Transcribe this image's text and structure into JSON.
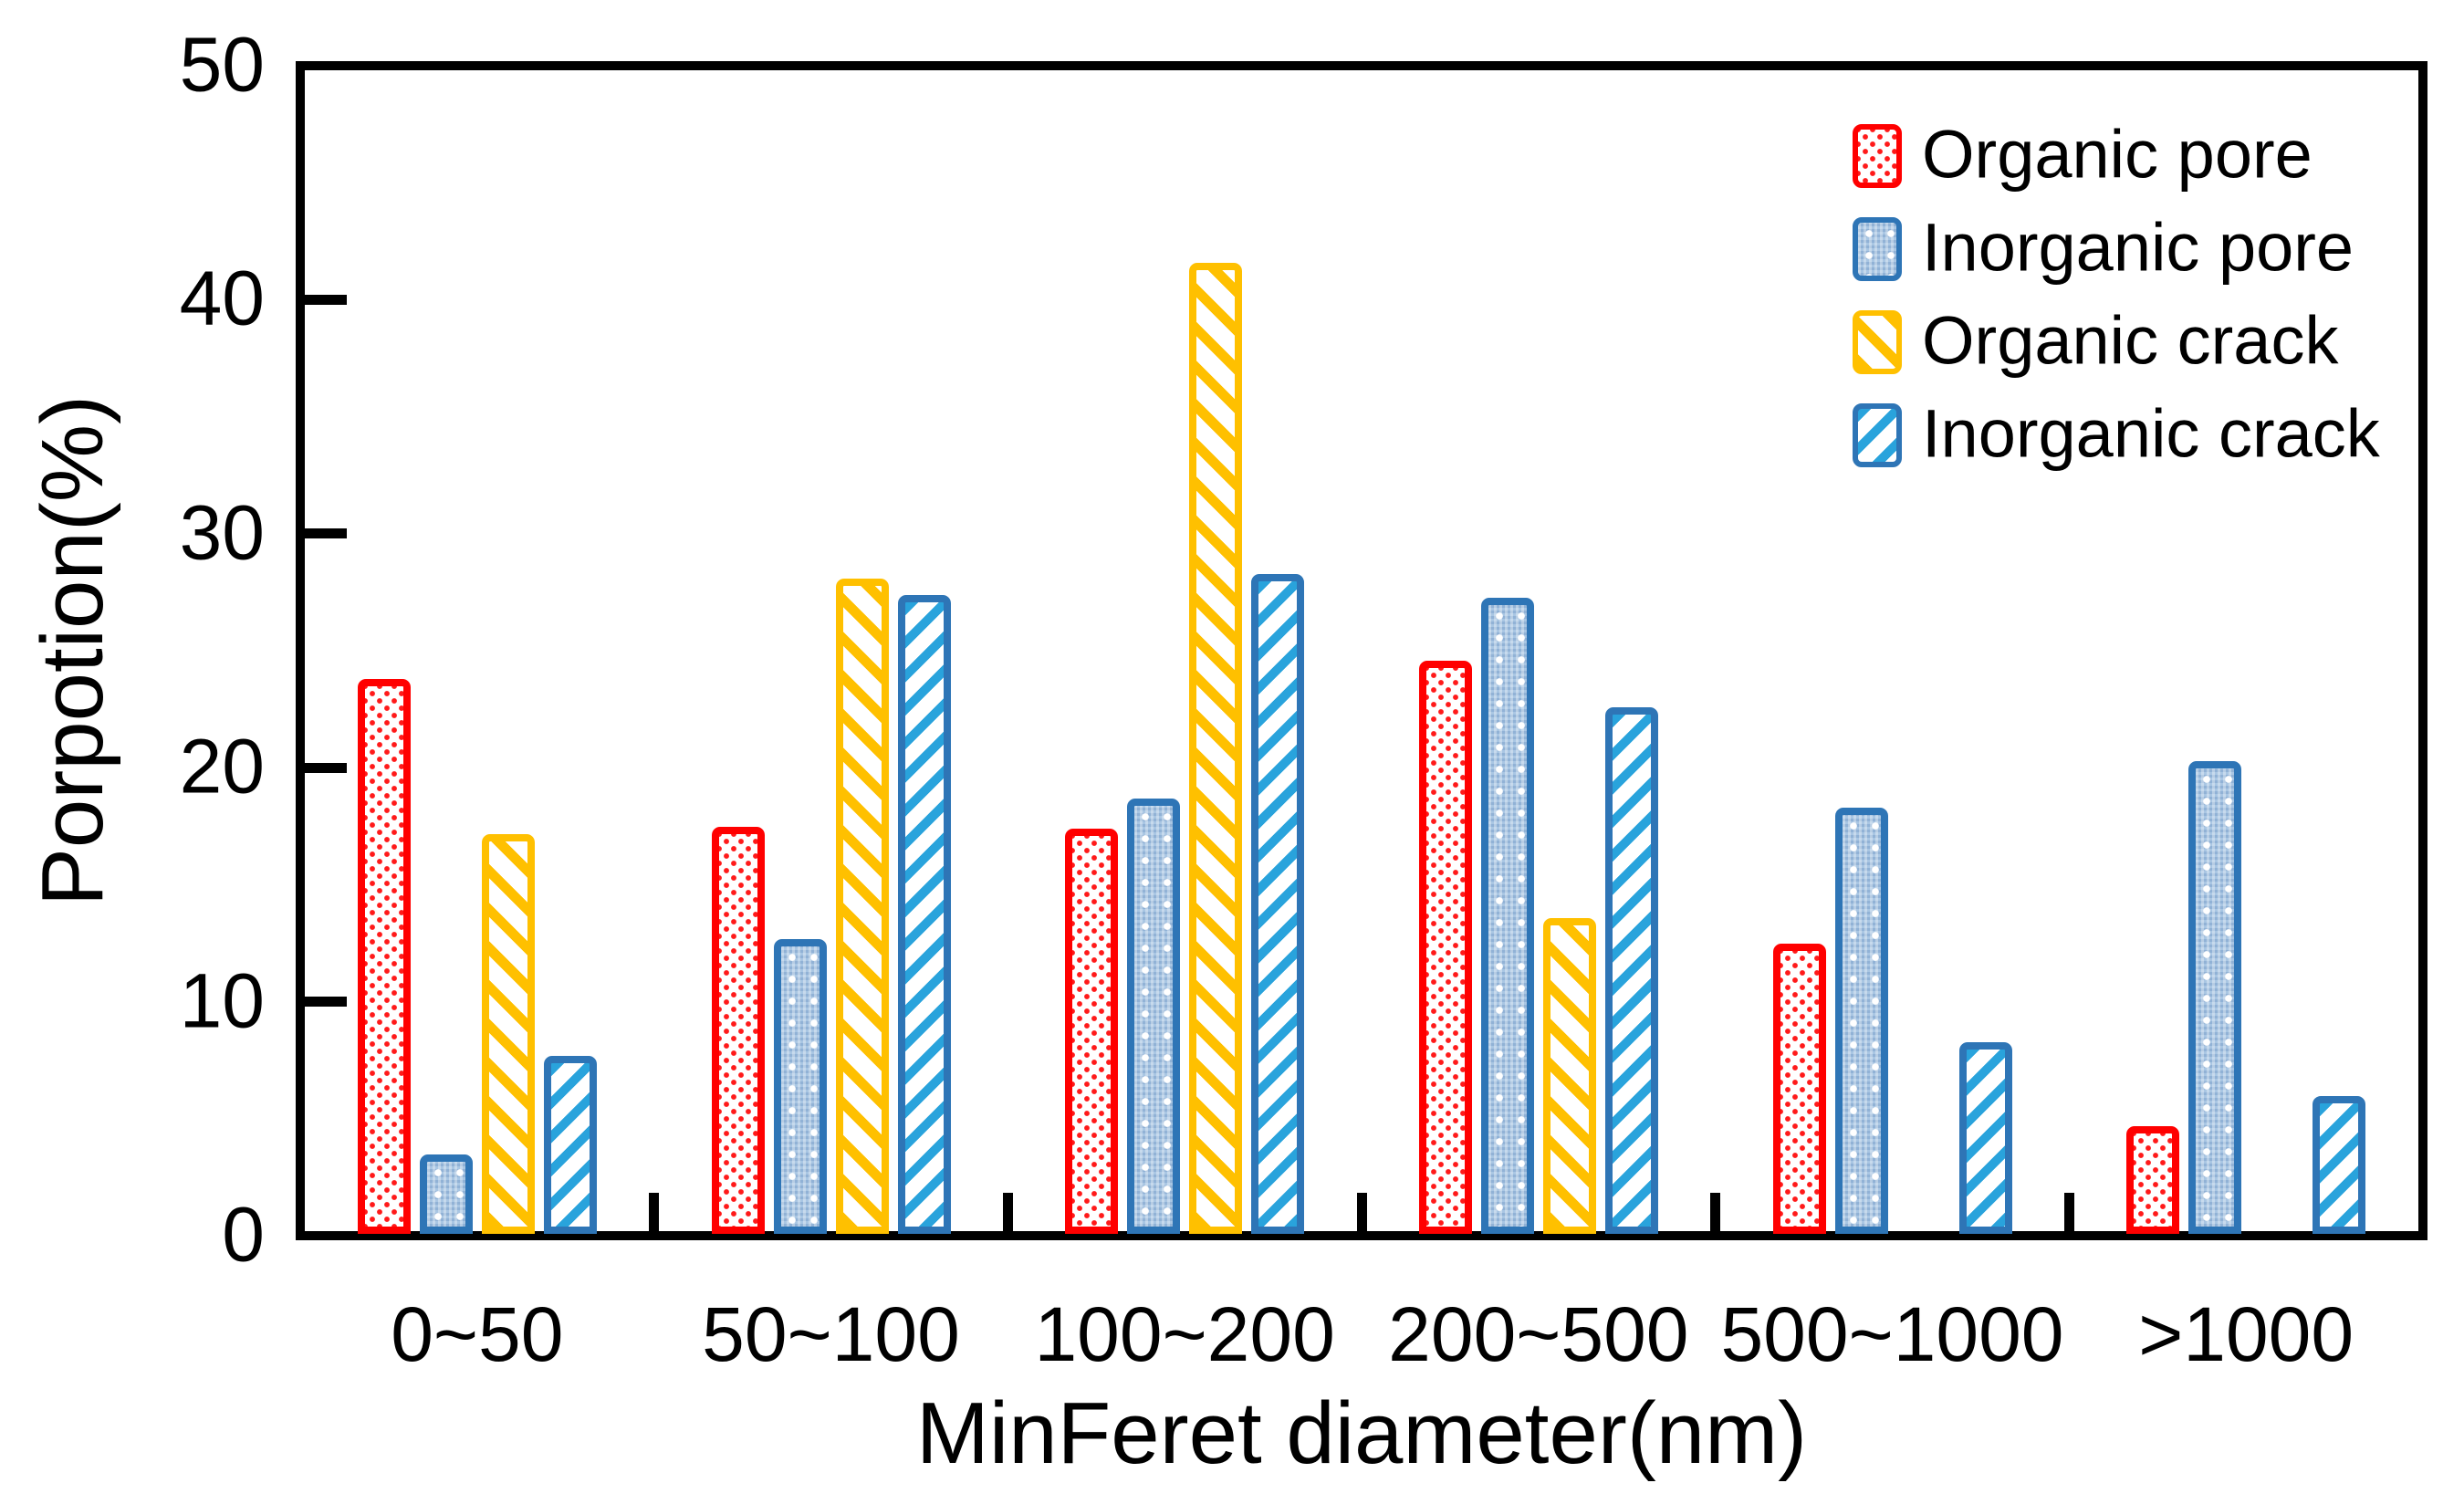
{
  "chart_data": {
    "type": "bar",
    "title": "",
    "xlabel": "MinFeret diameter(nm)",
    "ylabel": "Porpotion(%)",
    "ylim": [
      0,
      50
    ],
    "yticks": [
      0,
      10,
      20,
      30,
      40,
      50
    ],
    "grid": false,
    "legend_position": "top-right",
    "categories": [
      "0~50",
      "50~100",
      "100~200",
      "200~500",
      "500~1000",
      ">1000"
    ],
    "series": [
      {
        "name": "Organic pore",
        "color": "#FF0000",
        "border": "#FF0000",
        "pattern": "red-dots",
        "values": [
          23.7,
          17.4,
          17.3,
          24.5,
          12.4,
          4.6
        ]
      },
      {
        "name": "Inorganic pore",
        "color": "#A9C6E3",
        "border": "#2E75B6",
        "pattern": "blue-dots",
        "values": [
          3.4,
          12.6,
          18.6,
          27.2,
          18.2,
          20.2
        ]
      },
      {
        "name": "Organic crack",
        "color": "#FFC000",
        "border": "#FFC000",
        "pattern": "gold-stripes",
        "values": [
          17.1,
          28.0,
          41.5,
          13.5,
          0,
          0
        ]
      },
      {
        "name": "Inorganic crack",
        "color": "#29A3DC",
        "border": "#2E75B6",
        "pattern": "cyan-stripes",
        "values": [
          7.6,
          27.3,
          28.2,
          22.5,
          8.2,
          5.9
        ]
      }
    ]
  }
}
